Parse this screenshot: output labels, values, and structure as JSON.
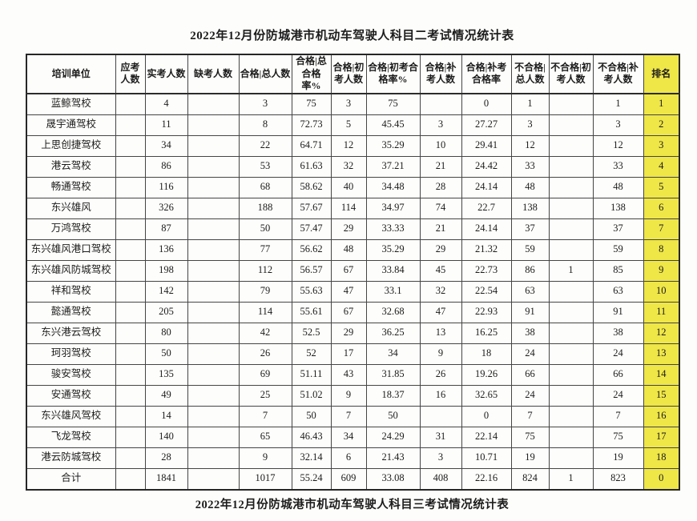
{
  "page": {
    "title": "2022年12月份防城港市机动车驾驶人科目二考试情况统计表",
    "footer_title": "2022年12月份防城港市机动车驾驶人科目三考试情况统计表"
  },
  "colors": {
    "rank_column_highlight": "#efe648",
    "border": "#454545",
    "text": "#1c1c1c"
  },
  "table": {
    "headers": [
      "培训单位",
      "应考人数",
      "实考人数",
      "缺考人数",
      "合格|总人数",
      "合格|总合格率%",
      "合格|初考人数",
      "合格|初考合格率%",
      "合格|补考人数",
      "合格|补考合格率",
      "不合格|总人数",
      "不合格|初考人数",
      "不合格|补考人数",
      "排名"
    ],
    "rows": [
      [
        "蓝鲸驾校",
        "",
        "4",
        "",
        "3",
        "75",
        "3",
        "75",
        "",
        "0",
        "1",
        "",
        "1",
        "1"
      ],
      [
        "晟宇通驾校",
        "",
        "11",
        "",
        "8",
        "72.73",
        "5",
        "45.45",
        "3",
        "27.27",
        "3",
        "",
        "3",
        "2"
      ],
      [
        "上思创捷驾校",
        "",
        "34",
        "",
        "22",
        "64.71",
        "12",
        "35.29",
        "10",
        "29.41",
        "12",
        "",
        "12",
        "3"
      ],
      [
        "港云驾校",
        "",
        "86",
        "",
        "53",
        "61.63",
        "32",
        "37.21",
        "21",
        "24.42",
        "33",
        "",
        "33",
        "4"
      ],
      [
        "畅通驾校",
        "",
        "116",
        "",
        "68",
        "58.62",
        "40",
        "34.48",
        "28",
        "24.14",
        "48",
        "",
        "48",
        "5"
      ],
      [
        "东兴雄风",
        "",
        "326",
        "",
        "188",
        "57.67",
        "114",
        "34.97",
        "74",
        "22.7",
        "138",
        "",
        "138",
        "6"
      ],
      [
        "万鸿驾校",
        "",
        "87",
        "",
        "50",
        "57.47",
        "29",
        "33.33",
        "21",
        "24.14",
        "37",
        "",
        "37",
        "7"
      ],
      [
        "东兴雄风港口驾校",
        "",
        "136",
        "",
        "77",
        "56.62",
        "48",
        "35.29",
        "29",
        "21.32",
        "59",
        "",
        "59",
        "8"
      ],
      [
        "东兴雄风防城驾校",
        "",
        "198",
        "",
        "112",
        "56.57",
        "67",
        "33.84",
        "45",
        "22.73",
        "86",
        "1",
        "85",
        "9"
      ],
      [
        "祥和驾校",
        "",
        "142",
        "",
        "79",
        "55.63",
        "47",
        "33.1",
        "32",
        "22.54",
        "63",
        "",
        "63",
        "10"
      ],
      [
        "懿通驾校",
        "",
        "205",
        "",
        "114",
        "55.61",
        "67",
        "32.68",
        "47",
        "22.93",
        "91",
        "",
        "91",
        "11"
      ],
      [
        "东兴港云驾校",
        "",
        "80",
        "",
        "42",
        "52.5",
        "29",
        "36.25",
        "13",
        "16.25",
        "38",
        "",
        "38",
        "12"
      ],
      [
        "珂羽驾校",
        "",
        "50",
        "",
        "26",
        "52",
        "17",
        "34",
        "9",
        "18",
        "24",
        "",
        "24",
        "13"
      ],
      [
        "骏安驾校",
        "",
        "135",
        "",
        "69",
        "51.11",
        "43",
        "31.85",
        "26",
        "19.26",
        "66",
        "",
        "66",
        "14"
      ],
      [
        "安通驾校",
        "",
        "49",
        "",
        "25",
        "51.02",
        "9",
        "18.37",
        "16",
        "32.65",
        "24",
        "",
        "24",
        "15"
      ],
      [
        "东兴雄风驾校",
        "",
        "14",
        "",
        "7",
        "50",
        "7",
        "50",
        "",
        "0",
        "7",
        "",
        "7",
        "16"
      ],
      [
        "飞龙驾校",
        "",
        "140",
        "",
        "65",
        "46.43",
        "34",
        "24.29",
        "31",
        "22.14",
        "75",
        "",
        "75",
        "17"
      ],
      [
        "港云防城驾校",
        "",
        "28",
        "",
        "9",
        "32.14",
        "6",
        "21.43",
        "3",
        "10.71",
        "19",
        "",
        "19",
        "18"
      ],
      [
        "合计",
        "",
        "1841",
        "",
        "1017",
        "55.24",
        "609",
        "33.08",
        "408",
        "22.16",
        "824",
        "1",
        "823",
        "0"
      ]
    ]
  }
}
